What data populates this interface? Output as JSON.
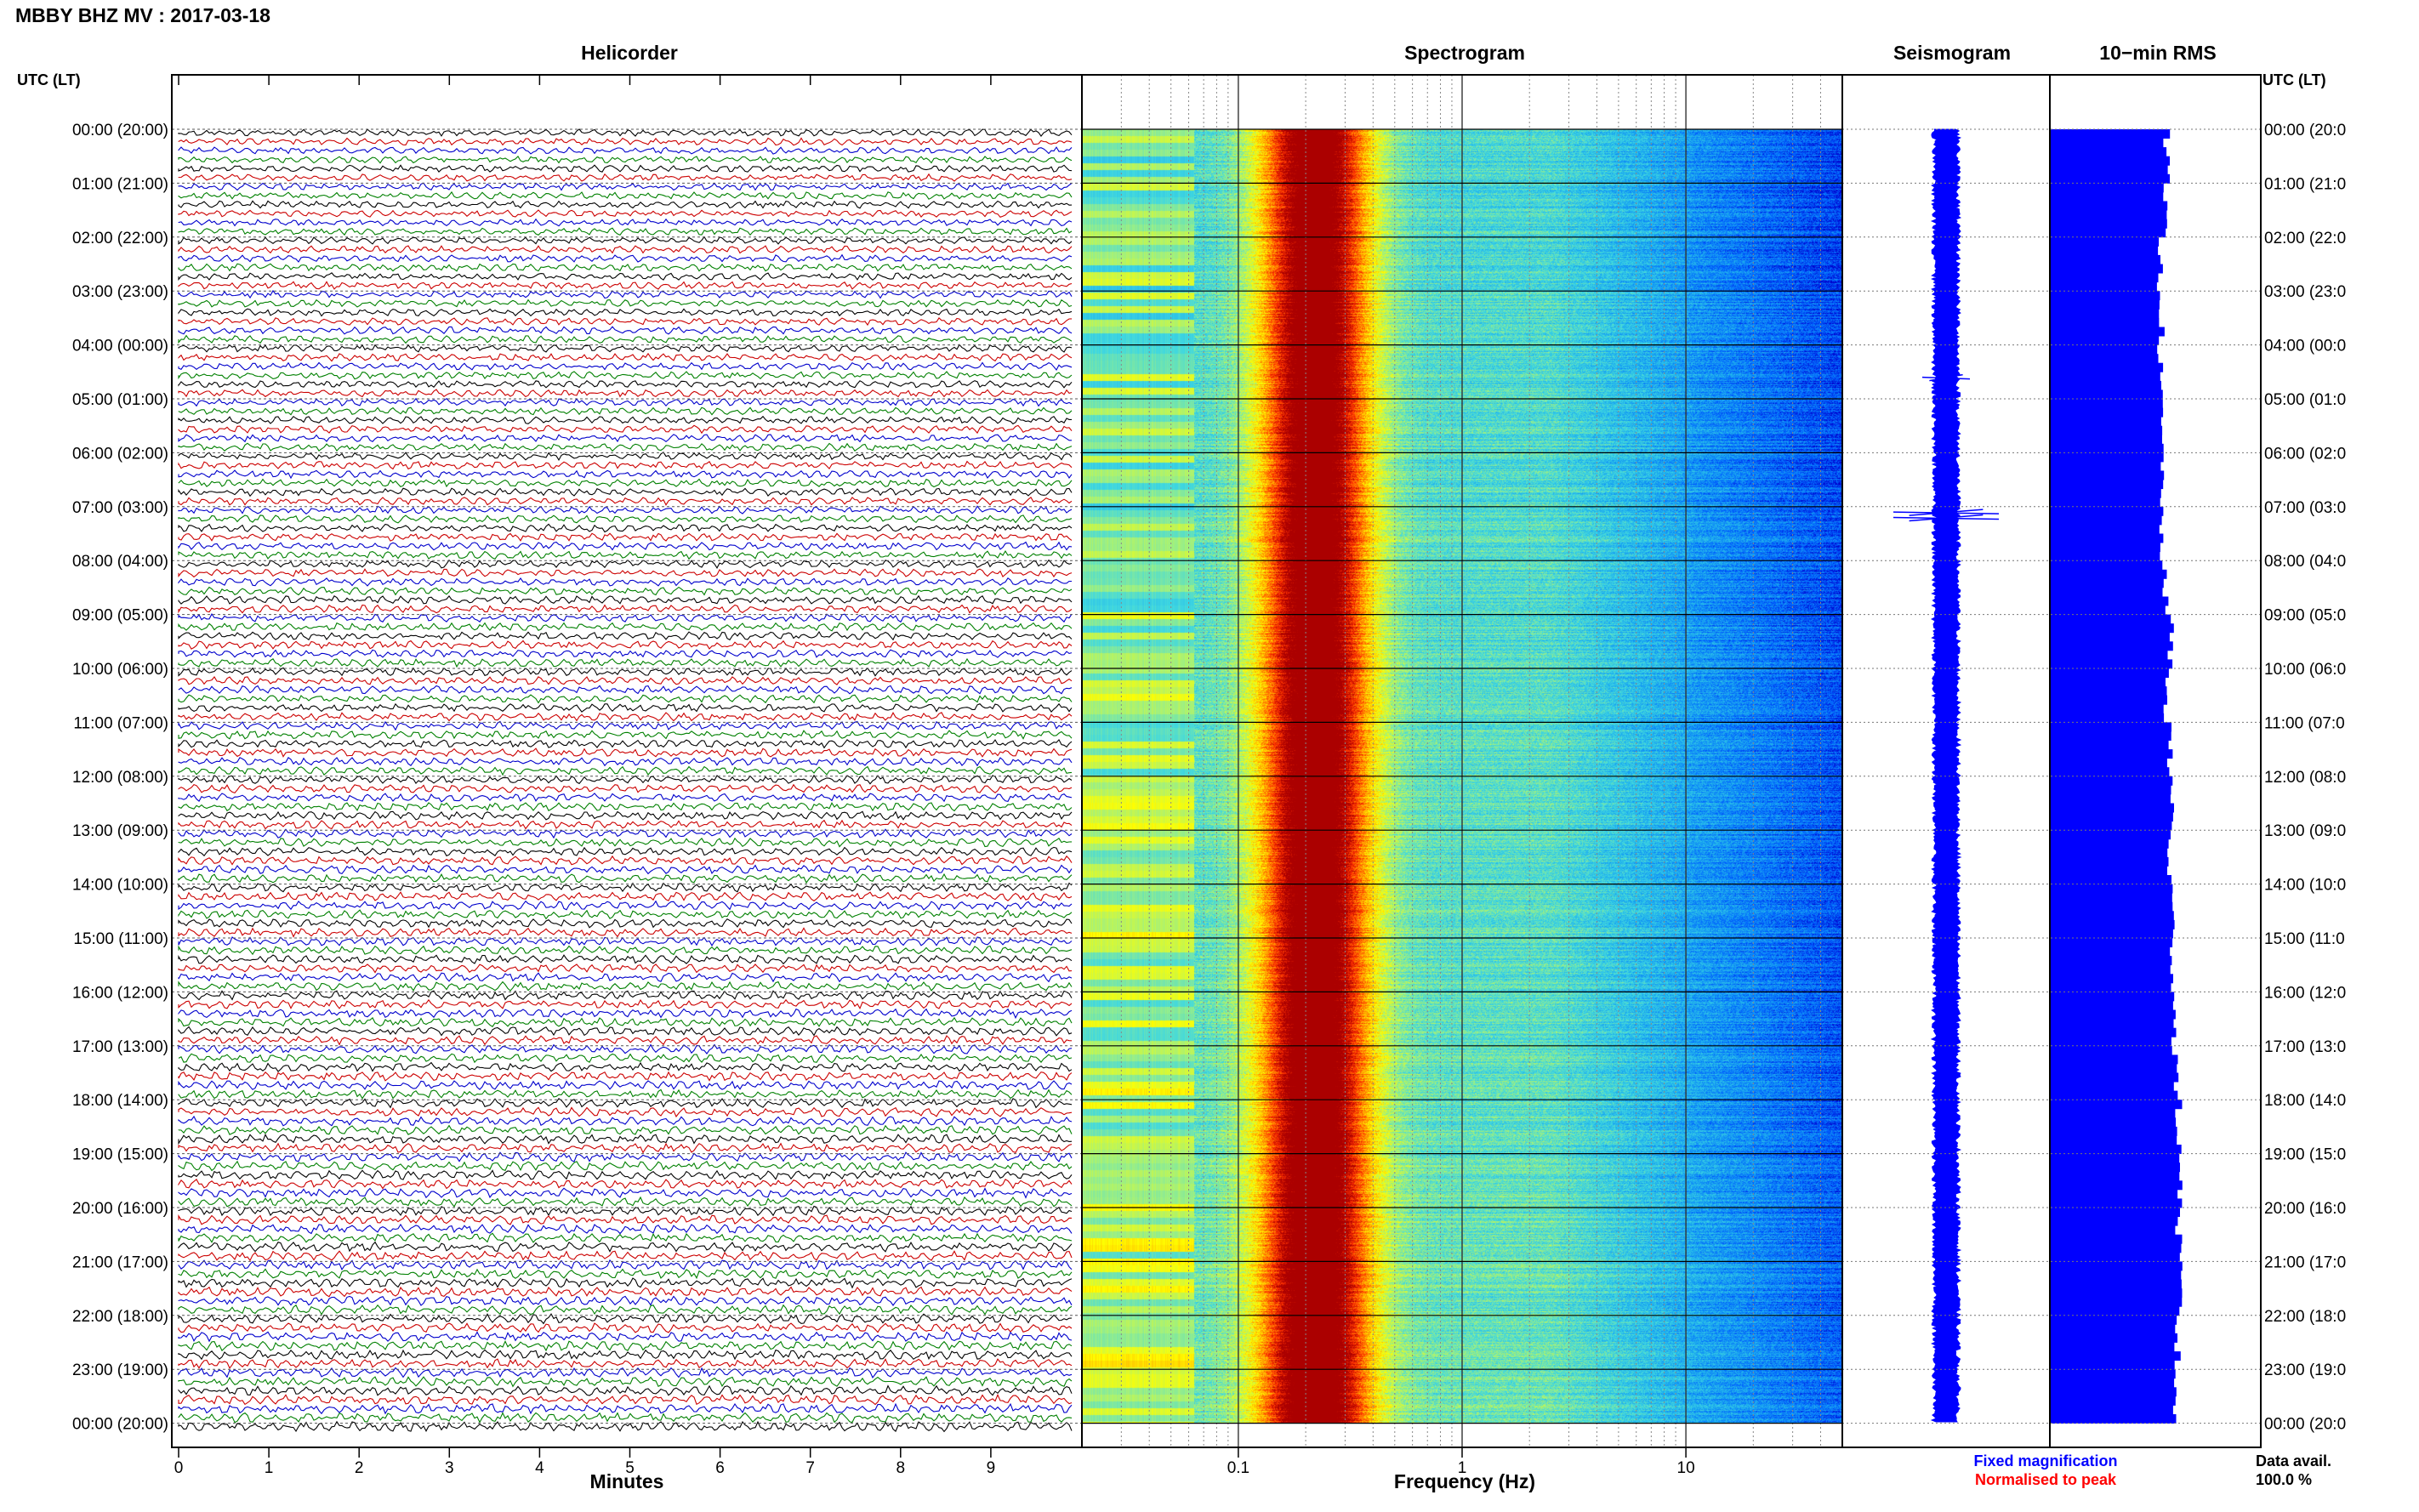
{
  "page_title": "MBBY BHZ MV : 2017-03-18",
  "left_axis_label": "UTC (LT)",
  "right_axis_label": "UTC (LT)",
  "panels": {
    "helicorder": "Helicorder",
    "spectrogram": "Spectrogram",
    "seismogram": "Seismogram",
    "rms": "10−min RMS"
  },
  "time_labels_left": [
    "00:00 (20:00)",
    "01:00 (21:00)",
    "02:00 (22:00)",
    "03:00 (23:00)",
    "04:00 (00:00)",
    "05:00 (01:00)",
    "06:00 (02:00)",
    "07:00 (03:00)",
    "08:00 (04:00)",
    "09:00 (05:00)",
    "10:00 (06:00)",
    "11:00 (07:00)",
    "12:00 (08:00)",
    "13:00 (09:00)",
    "14:00 (10:00)",
    "15:00 (11:00)",
    "16:00 (12:00)",
    "17:00 (13:00)",
    "18:00 (14:00)",
    "19:00 (15:00)",
    "20:00 (16:00)",
    "21:00 (17:00)",
    "22:00 (18:00)",
    "23:00 (19:00)",
    "00:00 (20:00)"
  ],
  "time_labels_right": [
    "00:00 (20:0",
    "01:00 (21:0",
    "02:00 (22:0",
    "03:00 (23:0",
    "04:00 (00:0",
    "05:00 (01:0",
    "06:00 (02:0",
    "07:00 (03:0",
    "08:00 (04:0",
    "09:00 (05:0",
    "10:00 (06:0",
    "11:00 (07:0",
    "12:00 (08:0",
    "13:00 (09:0",
    "14:00 (10:0",
    "15:00 (11:0",
    "16:00 (12:0",
    "17:00 (13:0",
    "18:00 (14:0",
    "19:00 (15:0",
    "20:00 (16:0",
    "21:00 (17:0",
    "22:00 (18:0",
    "23:00 (19:0",
    "00:00 (20:0"
  ],
  "chart_data": {
    "type": "heatmap",
    "helicorder": {
      "xlabel": "Minutes",
      "xticks": [
        0,
        1,
        2,
        3,
        4,
        5,
        6,
        7,
        8,
        9
      ],
      "xlim": [
        0,
        10
      ],
      "trace_colors": [
        "#000000",
        "#cc0000",
        "#0000cc",
        "#008000"
      ],
      "hours": 24,
      "traces_per_hour": 6
    },
    "spectrogram": {
      "xlabel": "Frequency (Hz)",
      "xscale": "log",
      "xlim": [
        0.02,
        50
      ],
      "xticks": [
        0.1,
        1,
        10
      ],
      "xtick_labels": [
        "0.1",
        "1",
        "10"
      ],
      "colormap": [
        "#0000cc",
        "#0060ff",
        "#1aa8f0",
        "#40d8e0",
        "#a0f080",
        "#ffff00",
        "#ffa000",
        "#ff3000",
        "#aa0000"
      ],
      "dominant_band_hz": [
        0.15,
        0.5
      ],
      "notes": ""
    },
    "seismogram": {
      "color": "#0000ff",
      "events_utc_hour": [
        4.6,
        7.1,
        7.2
      ]
    },
    "rms": {
      "interval_minutes": 10,
      "color": "#0000ff",
      "hourly_relative_level": [
        0.88,
        0.86,
        0.83,
        0.84,
        0.83,
        0.84,
        0.85,
        0.83,
        0.87,
        0.91,
        0.88,
        0.9,
        0.92,
        0.9,
        0.92,
        0.93,
        0.94,
        0.95,
        0.97,
        0.99,
        0.97,
        0.98,
        0.96,
        0.95
      ]
    },
    "legend": {
      "fixed": "Fixed magnification",
      "normalised": "Normalised to peak",
      "fixed_color": "#0000ff",
      "normalised_color": "#ff0000"
    },
    "data_availability": {
      "label": "Data avail.",
      "value": "100.0 %"
    }
  }
}
